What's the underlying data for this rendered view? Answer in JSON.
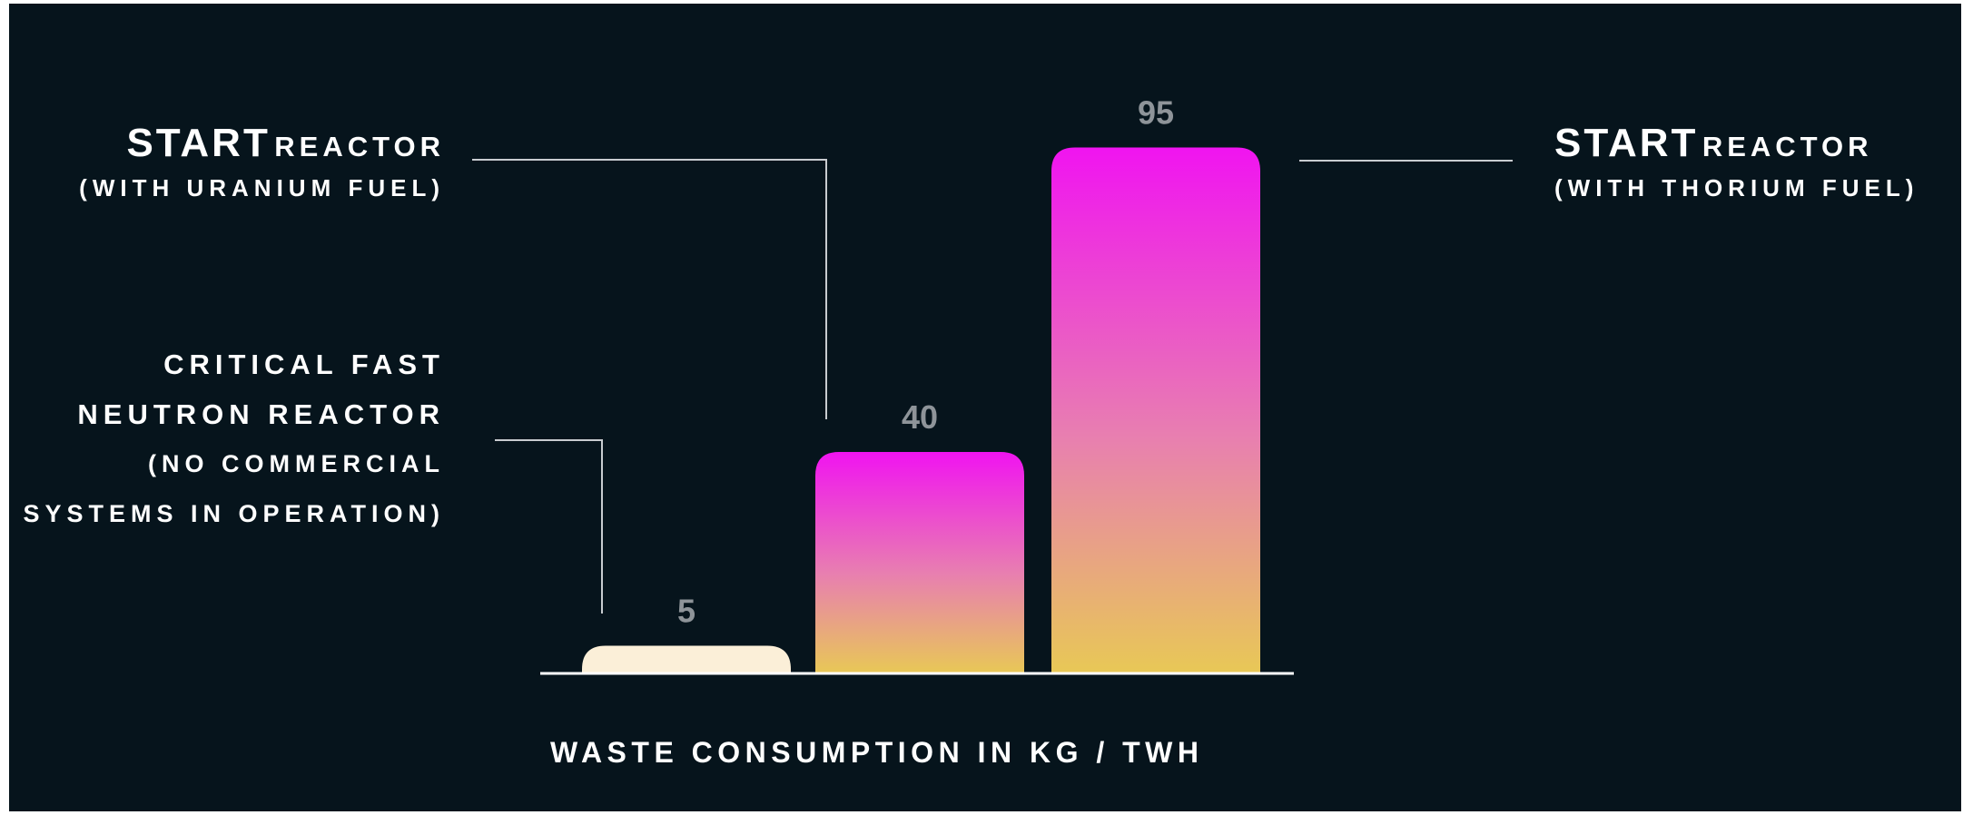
{
  "chart_data": {
    "type": "bar",
    "categories": [
      "CRITICAL FAST NEUTRON REACTOR (NO COMMERCIAL SYSTEMS IN OPERATION)",
      "START REACTOR (WITH URANIUM FUEL)",
      "START REACTOR (WITH THORIUM FUEL)"
    ],
    "values": [
      5,
      40,
      95
    ],
    "value_labels": [
      "5",
      "40",
      "95"
    ],
    "xlabel": "WASTE CONSUMPTION IN KG / TWH",
    "ylabel": "",
    "ylim": [
      0,
      100
    ],
    "grid": false,
    "legend": "none",
    "colors": {
      "background": "#06141c",
      "bar_first": "#fbefd8",
      "gradient_top": "#f014f0",
      "gradient_mid": "#e87fb0",
      "gradient_bottom": "#e8c856",
      "value_label": "#8e9499",
      "axis": "#ffffff",
      "leader_line": "#c8ccd0"
    }
  },
  "annotations": {
    "uranium": {
      "title_bold": "START",
      "title_rest": "REACTOR",
      "subtitle": "(WITH URANIUM FUEL)"
    },
    "thorium": {
      "title_bold": "START",
      "title_rest": "REACTOR",
      "subtitle": "(WITH THORIUM FUEL)"
    },
    "fast_neutron": {
      "line1": "CRITICAL FAST",
      "line2": "NEUTRON REACTOR",
      "line3": "(NO COMMERCIAL",
      "line4": "SYSTEMS IN OPERATION)"
    }
  }
}
